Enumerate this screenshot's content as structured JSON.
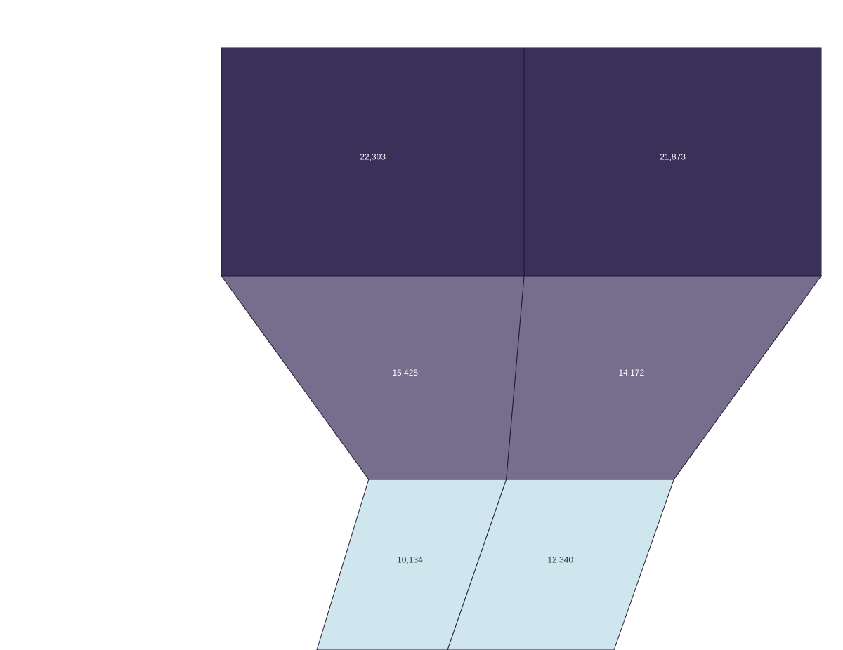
{
  "chart_data": {
    "type": "funnel",
    "stages": [
      "",
      "",
      ""
    ],
    "series": [
      {
        "values": [
          22303,
          15425,
          10134
        ]
      },
      {
        "values": [
          21873,
          14172,
          12340
        ]
      }
    ],
    "value_labels": [
      [
        "22,303",
        "15,425",
        "10,134"
      ],
      [
        "21,873",
        "14,172",
        "12,340"
      ]
    ],
    "stage_colors": [
      "#3b3059",
      "#766e8c",
      "#cfe6ef"
    ],
    "label_colors": [
      "#ffffff",
      "#ffffff",
      "#333333"
    ],
    "grid": false,
    "legend": "none"
  }
}
